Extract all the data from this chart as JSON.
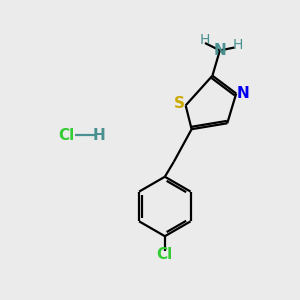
{
  "background_color": "#ebebeb",
  "bond_color": "#000000",
  "S_color": "#ccaa00",
  "N_color": "#0000ee",
  "Cl_color": "#33cc33",
  "NH_color": "#4a9090",
  "H_color": "#4a9090",
  "fig_size": [
    3.0,
    3.0
  ],
  "dpi": 100,
  "xlim": [
    0,
    10
  ],
  "ylim": [
    0,
    10
  ]
}
